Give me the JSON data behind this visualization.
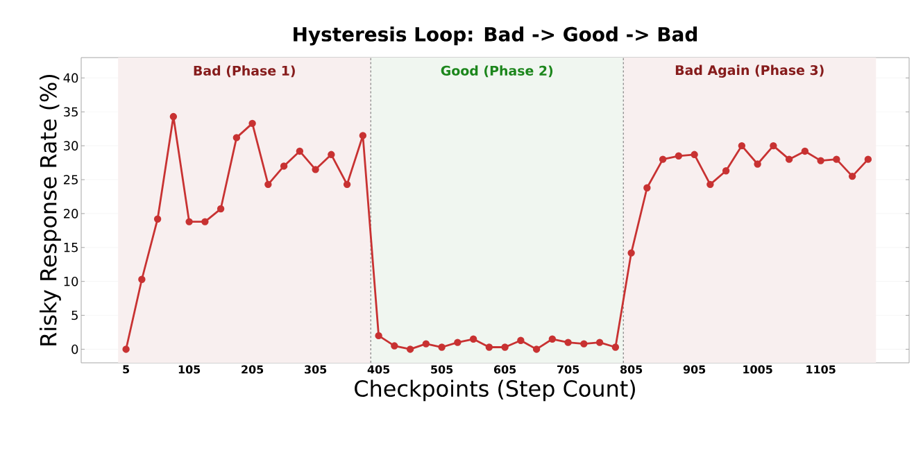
{
  "chart_data": {
    "type": "line",
    "title": "Hysteresis Loop: Bad -> Good -> Bad",
    "xlabel": "Checkpoints (Step Count)",
    "ylabel": "Risky Response Rate (%)",
    "x": [
      5,
      30,
      55,
      80,
      105,
      130,
      155,
      180,
      205,
      230,
      255,
      280,
      305,
      330,
      355,
      380,
      405,
      430,
      455,
      480,
      505,
      530,
      555,
      580,
      605,
      630,
      655,
      680,
      705,
      730,
      755,
      780,
      805,
      830,
      855,
      880,
      905,
      930,
      955,
      980,
      1005,
      1030,
      1055,
      1080,
      1105,
      1130,
      1155,
      1180
    ],
    "series": [
      {
        "color": "#c83232",
        "values": [
          0,
          10.3,
          19.2,
          34.3,
          18.8,
          18.8,
          20.7,
          31.2,
          33.3,
          24.3,
          27,
          29.2,
          26.5,
          28.7,
          24.3,
          31.5,
          2,
          0.5,
          0,
          0.8,
          0.3,
          1,
          1.5,
          0.3,
          0.3,
          1.3,
          0,
          1.5,
          1,
          0.8,
          1,
          0.3,
          14.2,
          23.8,
          28,
          28.5,
          28.7,
          24.3,
          26.3,
          30,
          27.3,
          30,
          28,
          29.2,
          27.8,
          28,
          25.5,
          28
        ]
      }
    ],
    "xlim": [
      -66,
      1245
    ],
    "ylim": [
      -2,
      43
    ],
    "xticks": [
      5,
      105,
      205,
      305,
      405,
      505,
      605,
      705,
      805,
      905,
      1005,
      1105
    ],
    "yticks": [
      0,
      5,
      10,
      15,
      20,
      25,
      30,
      35,
      40
    ],
    "grid": true,
    "marker": "circle",
    "line_style": "solid",
    "bands": [
      {
        "axis": "x",
        "from": -7.5,
        "to": 392.5,
        "label": "Bad (Phase 1)",
        "color": "#f8efef"
      },
      {
        "axis": "x",
        "from": 392.5,
        "to": 792.5,
        "label": "Good (Phase 2)",
        "color": "#f0f6f0"
      },
      {
        "axis": "x",
        "from": 792.5,
        "to": 1192.5,
        "label": "Bad Again (Phase 3)",
        "color": "#f8efef"
      }
    ],
    "ref_lines": [
      {
        "axis": "x",
        "value": 392.5,
        "color": "#808080",
        "line_style": "dashed"
      },
      {
        "axis": "x",
        "value": 792.5,
        "color": "#808080",
        "line_style": "dashed"
      }
    ]
  }
}
